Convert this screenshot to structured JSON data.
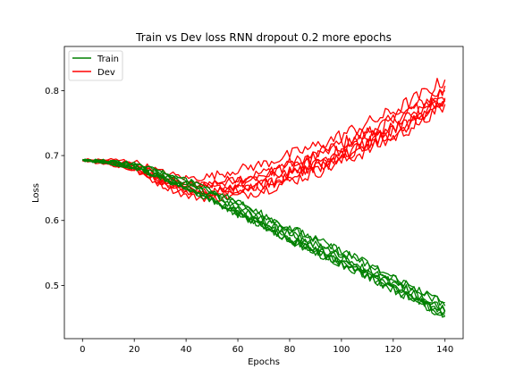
{
  "chart_data": {
    "type": "line",
    "title": "Train vs Dev loss RNN dropout 0.2 more epochs",
    "xlabel": "Epochs",
    "ylabel": "Loss",
    "xlim": [
      -7,
      147
    ],
    "ylim": [
      0.418,
      0.868
    ],
    "xticks": [
      0,
      20,
      40,
      60,
      80,
      100,
      120,
      140
    ],
    "yticks": [
      0.5,
      0.6,
      0.7,
      0.8
    ],
    "grid": false,
    "legend_placement": "top-left",
    "colors": {
      "Train": "#008000",
      "Dev": "#ff0000"
    },
    "series": [
      {
        "name": "Train",
        "run_count": 8,
        "summary": {
          "x": [
            0,
            10,
            20,
            30,
            40,
            50,
            60,
            70,
            80,
            90,
            100,
            110,
            120,
            130,
            140
          ],
          "y": [
            0.693,
            0.69,
            0.684,
            0.67,
            0.655,
            0.638,
            0.618,
            0.598,
            0.578,
            0.56,
            0.542,
            0.523,
            0.502,
            0.482,
            0.462
          ]
        }
      },
      {
        "name": "Dev",
        "run_count": 8,
        "summary": {
          "x": [
            0,
            10,
            20,
            30,
            40,
            45,
            50,
            60,
            70,
            80,
            90,
            100,
            110,
            120,
            130,
            140
          ],
          "y": [
            0.693,
            0.69,
            0.684,
            0.665,
            0.651,
            0.65,
            0.651,
            0.657,
            0.666,
            0.68,
            0.693,
            0.71,
            0.728,
            0.747,
            0.77,
            0.795
          ]
        }
      }
    ]
  }
}
